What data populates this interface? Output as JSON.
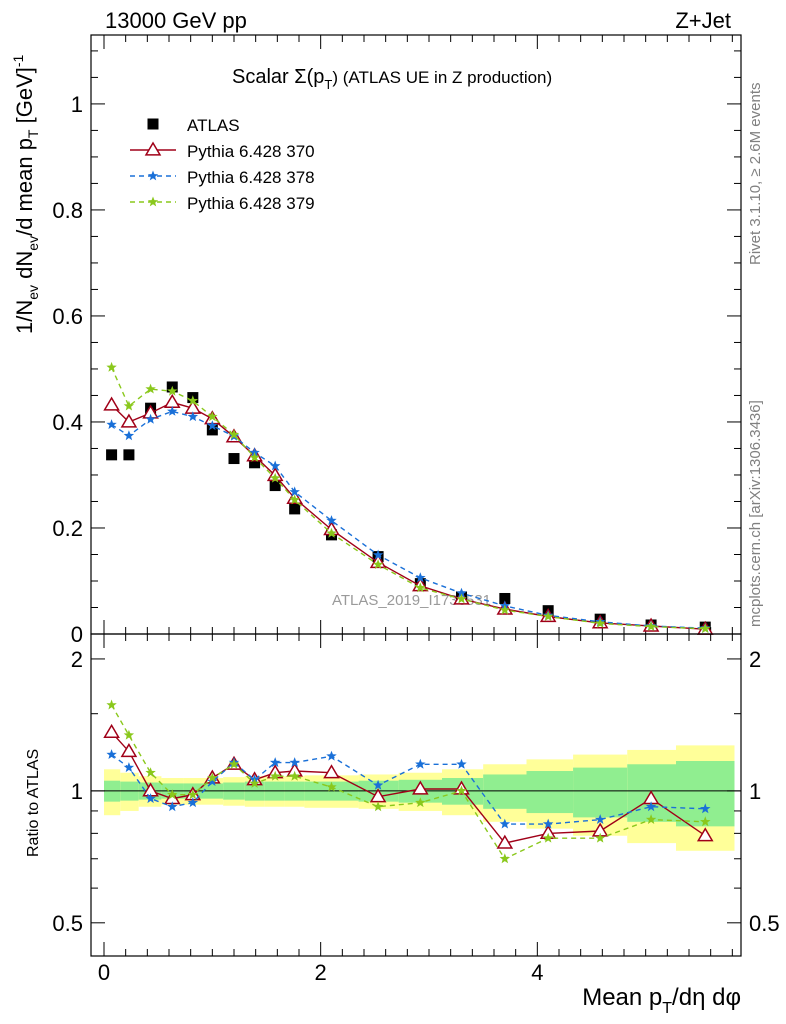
{
  "header": {
    "energy_label": "13000 GeV pp",
    "process_label": "Z+Jet",
    "side_label_top": "Rivet 3.1.10, ≥ 2.6M events",
    "side_label_bottom": "mcplots.cern.ch [arXiv:1306.3436]",
    "analysis_watermark": "ATLAS_2019_I1736531"
  },
  "chart_data": [
    {
      "type": "scatter",
      "panel": "main",
      "title": "Scalar Σ(p_T) (ATLAS UE in Z production)",
      "title_parts": {
        "prefix": "Scalar ",
        "sigma": "Σ(p",
        "sub": "T",
        "rest": ")  (ATLAS UE in Z production)"
      },
      "ylabel": "1/N_ev dN_ev/d mean p_T [GeV]^-1",
      "xlabel": "Mean p_T/dη dφ",
      "xlim": [
        -0.12,
        5.88
      ],
      "ylim": [
        0,
        1.13
      ],
      "yticks": [
        0,
        0.2,
        0.4,
        0.6,
        0.8,
        1
      ],
      "ytick_labels": [
        "0",
        "0.2",
        "0.4",
        "0.6",
        "0.8",
        "1"
      ],
      "xticks": [
        0,
        2,
        4
      ],
      "xtick_labels": [
        "0",
        "2",
        "4"
      ],
      "legend_position": "top-left",
      "x": [
        0.07,
        0.23,
        0.43,
        0.63,
        0.82,
        1.0,
        1.2,
        1.39,
        1.58,
        1.76,
        2.1,
        2.53,
        2.92,
        3.3,
        3.7,
        4.1,
        4.58,
        5.05,
        5.55
      ],
      "series": [
        {
          "name": "ATLAS",
          "color": "#000000",
          "marker": "square",
          "line": "none",
          "values": [
            0.338,
            0.338,
            0.426,
            0.466,
            0.446,
            0.385,
            0.331,
            0.323,
            0.28,
            0.236,
            0.187,
            0.146,
            0.095,
            0.07,
            0.067,
            0.044,
            0.028,
            0.017,
            0.013
          ]
        },
        {
          "name": "Pythia 6.428 370",
          "color": "#a00018",
          "marker": "triangle-open",
          "line": "solid",
          "values": [
            0.432,
            0.4,
            0.417,
            0.437,
            0.426,
            0.406,
            0.372,
            0.336,
            0.299,
            0.256,
            0.197,
            0.135,
            0.091,
            0.066,
            0.047,
            0.033,
            0.021,
            0.015,
            0.009
          ]
        },
        {
          "name": "Pythia 6.428 378",
          "color": "#1a70d8",
          "marker": "star",
          "line": "dashed",
          "values": [
            0.395,
            0.374,
            0.405,
            0.42,
            0.41,
            0.393,
            0.373,
            0.342,
            0.317,
            0.268,
            0.214,
            0.149,
            0.106,
            0.077,
            0.053,
            0.035,
            0.023,
            0.015,
            0.011
          ]
        },
        {
          "name": "Pythia 6.428 379",
          "color": "#8ac81c",
          "marker": "star",
          "line": "dashed",
          "values": [
            0.503,
            0.43,
            0.462,
            0.458,
            0.44,
            0.41,
            0.376,
            0.333,
            0.294,
            0.253,
            0.19,
            0.131,
            0.087,
            0.066,
            0.045,
            0.033,
            0.02,
            0.014,
            0.01
          ]
        }
      ]
    },
    {
      "type": "line",
      "panel": "ratio",
      "ylabel": "Ratio to ATLAS",
      "ylim": [
        0.42,
        2.28
      ],
      "yscale": "log",
      "yticks": [
        0.5,
        1,
        2
      ],
      "ytick_labels": [
        "0.5",
        "1",
        "2"
      ],
      "xlim": [
        -0.12,
        5.88
      ],
      "xticks": [
        0,
        2,
        4
      ],
      "xtick_labels": [
        "0",
        "2",
        "4"
      ],
      "x": [
        0.07,
        0.23,
        0.43,
        0.63,
        0.82,
        1.0,
        1.2,
        1.39,
        1.58,
        1.76,
        2.1,
        2.53,
        2.92,
        3.3,
        3.7,
        4.1,
        4.58,
        5.05,
        5.55
      ],
      "bin_edges": [
        0,
        0.15,
        0.32,
        0.53,
        0.73,
        0.9,
        1.1,
        1.3,
        1.48,
        1.67,
        1.85,
        2.35,
        2.72,
        3.12,
        3.5,
        3.9,
        4.33,
        4.83,
        5.28,
        5.82
      ],
      "band_inner_halfwidth": [
        0.055,
        0.05,
        0.045,
        0.04,
        0.04,
        0.04,
        0.045,
        0.05,
        0.05,
        0.05,
        0.05,
        0.055,
        0.06,
        0.07,
        0.09,
        0.11,
        0.13,
        0.15,
        0.17
      ],
      "band_outer_halfwidth": [
        0.12,
        0.1,
        0.08,
        0.07,
        0.07,
        0.07,
        0.075,
        0.08,
        0.08,
        0.08,
        0.085,
        0.09,
        0.1,
        0.12,
        0.15,
        0.18,
        0.21,
        0.24,
        0.27
      ],
      "band_colors": {
        "inner": "#90ee90",
        "outer": "#ffff99"
      },
      "series": [
        {
          "name": "Pythia 6.428 370",
          "color": "#a00018",
          "marker": "triangle-open",
          "line": "solid",
          "values": [
            1.36,
            1.23,
            1.0,
            0.96,
            0.98,
            1.07,
            1.15,
            1.06,
            1.1,
            1.11,
            1.1,
            0.97,
            1.01,
            1.01,
            0.76,
            0.8,
            0.81,
            0.96,
            0.79
          ]
        },
        {
          "name": "Pythia 6.428 378",
          "color": "#1a70d8",
          "marker": "star",
          "line": "dashed",
          "values": [
            1.21,
            1.13,
            0.96,
            0.92,
            0.94,
            1.05,
            1.16,
            1.06,
            1.16,
            1.16,
            1.2,
            1.03,
            1.15,
            1.15,
            0.84,
            0.84,
            0.86,
            0.92,
            0.91
          ]
        },
        {
          "name": "Pythia 6.428 379",
          "color": "#8ac81c",
          "marker": "star",
          "line": "dashed",
          "values": [
            1.57,
            1.34,
            1.1,
            0.98,
            0.98,
            1.07,
            1.15,
            1.04,
            1.08,
            1.08,
            1.02,
            0.92,
            0.94,
            1.0,
            0.7,
            0.78,
            0.78,
            0.86,
            0.85
          ]
        }
      ]
    }
  ]
}
